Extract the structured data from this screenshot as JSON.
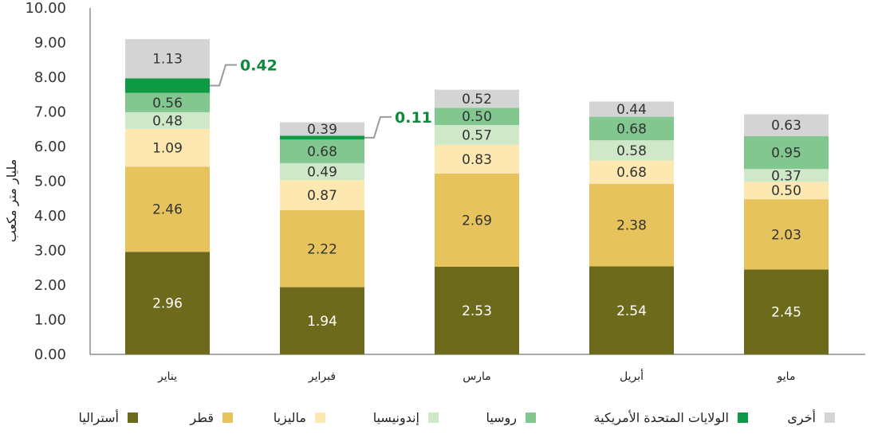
{
  "chart_data": {
    "type": "bar",
    "stacked": true,
    "title": "",
    "xlabel": "",
    "ylabel": "مليار متر مكعب",
    "ylim": [
      0,
      10
    ],
    "yticks": [
      "0.00",
      "1.00",
      "2.00",
      "3.00",
      "4.00",
      "5.00",
      "6.00",
      "7.00",
      "8.00",
      "9.00",
      "10.00"
    ],
    "categories": [
      "يناير",
      "فبراير",
      "مارس",
      "أبريل",
      "مايو"
    ],
    "series": [
      {
        "name": "أستراليا",
        "color": "#6e6a1c",
        "values": [
          2.96,
          1.94,
          2.53,
          2.54,
          2.45
        ],
        "labels": [
          "2.96",
          "1.94",
          "2.53",
          "2.54",
          "2.45"
        ],
        "text_color": "#ffffff"
      },
      {
        "name": "قطر",
        "color": "#e6c35c",
        "values": [
          2.46,
          2.22,
          2.69,
          2.38,
          2.03
        ],
        "labels": [
          "2.46",
          "2.22",
          "2.69",
          "2.38",
          "2.03"
        ],
        "text_color": "#333333"
      },
      {
        "name": "ماليزيا",
        "color": "#fde8b2",
        "values": [
          1.09,
          0.87,
          0.83,
          0.68,
          0.5
        ],
        "labels": [
          "1.09",
          "0.87",
          "0.83",
          "0.68",
          "0.50"
        ],
        "text_color": "#333333"
      },
      {
        "name": "إندونيسيا",
        "color": "#cfe8c8",
        "values": [
          0.48,
          0.49,
          0.57,
          0.58,
          0.37
        ],
        "labels": [
          "0.48",
          "0.49",
          "0.57",
          "0.58",
          "0.37"
        ],
        "text_color": "#333333"
      },
      {
        "name": "روسيا",
        "color": "#82c78f",
        "values": [
          0.56,
          0.68,
          0.5,
          0.68,
          0.95
        ],
        "labels": [
          "0.56",
          "0.68",
          "0.50",
          "0.68",
          "0.95"
        ],
        "text_color": "#333333"
      },
      {
        "name": "الولايات المتحدة الأمريكية",
        "color": "#0e9a45",
        "values": [
          0.42,
          0.11,
          0,
          0,
          0
        ],
        "labels": [
          "",
          "",
          "",
          "",
          ""
        ],
        "text_color": "#ffffff"
      },
      {
        "name": "أخرى",
        "color": "#d4d4d4",
        "values": [
          1.13,
          0.39,
          0.52,
          0.44,
          0.63
        ],
        "labels": [
          "1.13",
          "0.39",
          "0.52",
          "0.44",
          "0.63"
        ],
        "text_color": "#333333"
      }
    ],
    "callouts": [
      {
        "category_index": 0,
        "series_index": 5,
        "label": "0.42"
      },
      {
        "category_index": 1,
        "series_index": 5,
        "label": "0.11"
      }
    ],
    "legend_position": "bottom",
    "grid": false
  }
}
